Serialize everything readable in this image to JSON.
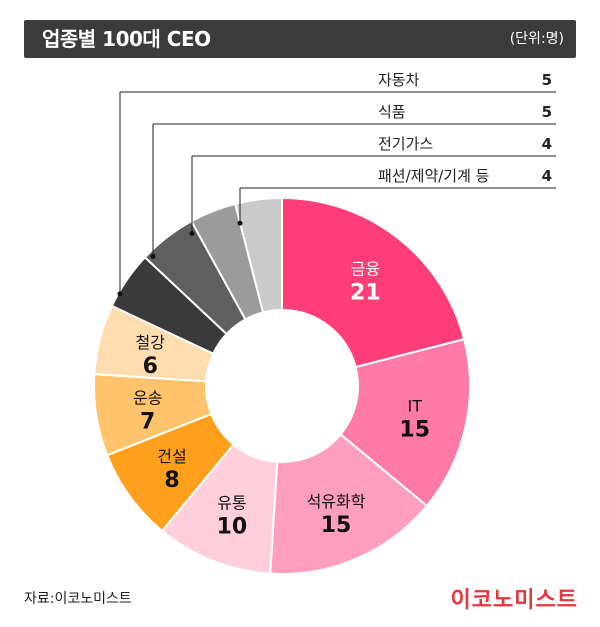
{
  "header": {
    "title": "업종별 100대 CEO",
    "unit": "(단위:명)"
  },
  "chart_data": {
    "type": "pie",
    "title": "업종별 100대 CEO",
    "unit": "(단위:명)",
    "donut": true,
    "categories": [
      "금융",
      "IT",
      "석유화학",
      "유통",
      "건설",
      "운송",
      "철강",
      "자동차",
      "식품",
      "전기가스",
      "패션/제약/기계 등"
    ],
    "values": [
      21,
      15,
      15,
      10,
      8,
      7,
      6,
      5,
      5,
      4,
      4
    ],
    "colors": [
      "#ff3d77",
      "#ff7aa6",
      "#ff9ebf",
      "#ffcfdd",
      "#ff9f1c",
      "#ffc46b",
      "#ffddb0",
      "#3a3a3a",
      "#5f5f5f",
      "#9b9b9b",
      "#cacaca"
    ],
    "inside_labels": [
      true,
      true,
      true,
      true,
      true,
      true,
      true,
      false,
      false,
      false,
      false
    ],
    "label_colors": [
      "#ffffff",
      "#111111",
      "#111111",
      "#111111",
      "#111111",
      "#111111",
      "#111111",
      "#111111",
      "#111111",
      "#111111",
      "#111111"
    ]
  },
  "legend": [
    {
      "name": "자동차",
      "value": "5"
    },
    {
      "name": "식품",
      "value": "5"
    },
    {
      "name": "전기가스",
      "value": "4"
    },
    {
      "name": "패션/제약/기계 등",
      "value": "4"
    }
  ],
  "footer": {
    "source": "자료:이코노미스트",
    "logo": "이코노미스트"
  }
}
